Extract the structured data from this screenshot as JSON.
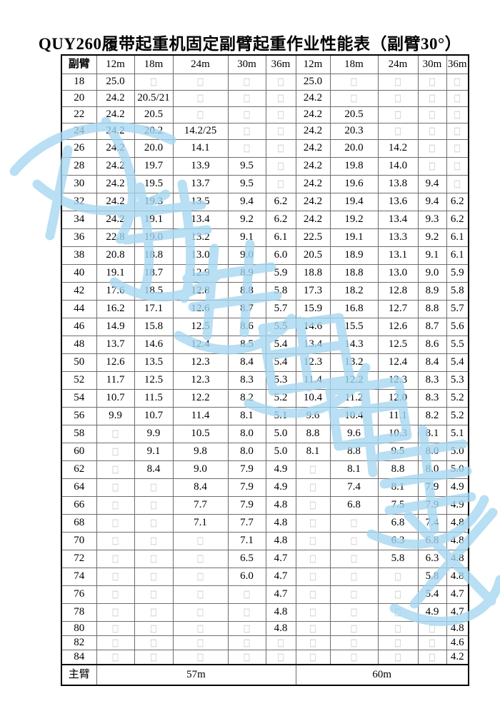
{
  "page": {
    "title": "QUY260履带起重机固定副臂起重作业性能表（副臂30°）"
  },
  "watermark": {
    "color": "#a5d7f0"
  },
  "table": {
    "corner_label": "副臂",
    "main_boom_label": "主臂",
    "left_main_boom": "57m",
    "right_main_boom": "60m",
    "empty_glyph": "□",
    "jib_headers_left": [
      "12m",
      "18m",
      "24m",
      "30m",
      "36m"
    ],
    "jib_headers_right": [
      "12m",
      "18m",
      "24m",
      "30m",
      "36m"
    ],
    "rows": [
      {
        "jib": "18",
        "cells": [
          "25.0",
          "□",
          "□",
          "□",
          "□",
          "25.0",
          "□",
          "□",
          "□",
          "□"
        ]
      },
      {
        "jib": "20",
        "cells": [
          "24.2",
          "20.5/21",
          "□",
          "□",
          "□",
          "24.2",
          "□",
          "□",
          "□",
          "□"
        ]
      },
      {
        "jib": "22",
        "cells": [
          "24.2",
          "20.5",
          "□",
          "□",
          "□",
          "24.2",
          "20.5",
          "□",
          "□",
          "□"
        ]
      },
      {
        "jib": "24",
        "cells": [
          "24.2",
          "20.2",
          "14.2/25",
          "□",
          "□",
          "24.2",
          "20.3",
          "□",
          "□",
          "□"
        ]
      },
      {
        "jib": "26",
        "cells": [
          "24.2",
          "20.0",
          "14.1",
          "□",
          "□",
          "24.2",
          "20.0",
          "14.2",
          "□",
          "□"
        ]
      },
      {
        "jib": "28",
        "cells": [
          "24.2",
          "19.7",
          "13.9",
          "9.5",
          "□",
          "24.2",
          "19.8",
          "14.0",
          "□",
          "□"
        ]
      },
      {
        "jib": "30",
        "cells": [
          "24.2",
          "19.5",
          "13.7",
          "9.5",
          "□",
          "24.2",
          "19.6",
          "13.8",
          "9.4",
          "□"
        ]
      },
      {
        "jib": "32",
        "cells": [
          "24.2",
          "19.3",
          "13.5",
          "9.4",
          "6.2",
          "24.2",
          "19.4",
          "13.6",
          "9.4",
          "6.2"
        ]
      },
      {
        "jib": "34",
        "cells": [
          "24.2",
          "19.1",
          "13.4",
          "9.2",
          "6.2",
          "24.2",
          "19.2",
          "13.4",
          "9.3",
          "6.2"
        ]
      },
      {
        "jib": "36",
        "cells": [
          "22.8",
          "19.0",
          "13.2",
          "9.1",
          "6.1",
          "22.5",
          "19.1",
          "13.3",
          "9.2",
          "6.1"
        ]
      },
      {
        "jib": "38",
        "cells": [
          "20.8",
          "18.8",
          "13.0",
          "9.0",
          "6.0",
          "20.5",
          "18.9",
          "13.1",
          "9.1",
          "6.1"
        ]
      },
      {
        "jib": "40",
        "cells": [
          "19.1",
          "18.7",
          "12.9",
          "8.9",
          "5.9",
          "18.8",
          "18.8",
          "13.0",
          "9.0",
          "5.9"
        ]
      },
      {
        "jib": "42",
        "cells": [
          "17.6",
          "18.5",
          "12.8",
          "8.8",
          "5.8",
          "17.3",
          "18.2",
          "12.8",
          "8.9",
          "5.8"
        ]
      },
      {
        "jib": "44",
        "cells": [
          "16.2",
          "17.1",
          "12.6",
          "8.7",
          "5.7",
          "15.9",
          "16.8",
          "12.7",
          "8.8",
          "5.7"
        ]
      },
      {
        "jib": "46",
        "cells": [
          "14.9",
          "15.8",
          "12.5",
          "8.6",
          "5.5",
          "14.6",
          "15.5",
          "12.6",
          "8.7",
          "5.6"
        ]
      },
      {
        "jib": "48",
        "cells": [
          "13.7",
          "14.6",
          "12.4",
          "8.5",
          "5.4",
          "13.4",
          "14.3",
          "12.5",
          "8.6",
          "5.5"
        ]
      },
      {
        "jib": "50",
        "cells": [
          "12.6",
          "13.5",
          "12.3",
          "8.4",
          "5.4",
          "12.3",
          "13.2",
          "12.4",
          "8.4",
          "5.4"
        ]
      },
      {
        "jib": "52",
        "cells": [
          "11.7",
          "12.5",
          "12.3",
          "8.3",
          "5.3",
          "11.4",
          "12.2",
          "12.3",
          "8.3",
          "5.3"
        ]
      },
      {
        "jib": "54",
        "cells": [
          "10.7",
          "11.5",
          "12.2",
          "8.2",
          "5.2",
          "10.4",
          "11.2",
          "12.0",
          "8.3",
          "5.2"
        ]
      },
      {
        "jib": "56",
        "cells": [
          "9.9",
          "10.7",
          "11.4",
          "8.1",
          "5.1",
          "9.6",
          "10.4",
          "11.1",
          "8.2",
          "5.2"
        ]
      },
      {
        "jib": "58",
        "cells": [
          "□",
          "9.9",
          "10.5",
          "8.0",
          "5.0",
          "8.8",
          "9.6",
          "10.3",
          "8.1",
          "5.1"
        ]
      },
      {
        "jib": "60",
        "cells": [
          "□",
          "9.1",
          "9.8",
          "8.0",
          "5.0",
          "8.1",
          "8.8",
          "9.5",
          "8.0",
          "5.0"
        ]
      },
      {
        "jib": "62",
        "cells": [
          "□",
          "8.4",
          "9.0",
          "7.9",
          "4.9",
          "□",
          "8.1",
          "8.8",
          "8.0",
          "5.0"
        ]
      },
      {
        "jib": "64",
        "cells": [
          "□",
          "□",
          "8.4",
          "7.9",
          "4.9",
          "□",
          "7.4",
          "8.1",
          "7.9",
          "4.9"
        ]
      },
      {
        "jib": "66",
        "cells": [
          "□",
          "□",
          "7.7",
          "7.9",
          "4.8",
          "□",
          "6.8",
          "7.5",
          "7.9",
          "4.9"
        ]
      },
      {
        "jib": "68",
        "cells": [
          "□",
          "□",
          "7.1",
          "7.7",
          "4.8",
          "□",
          "□",
          "6.8",
          "7.4",
          "4.8"
        ]
      },
      {
        "jib": "70",
        "cells": [
          "□",
          "□",
          "□",
          "7.1",
          "4.8",
          "□",
          "□",
          "6.3",
          "6.8",
          "4.8"
        ]
      },
      {
        "jib": "72",
        "cells": [
          "□",
          "□",
          "□",
          "6.5",
          "4.7",
          "□",
          "□",
          "5.8",
          "6.3",
          "4.8"
        ]
      },
      {
        "jib": "74",
        "cells": [
          "□",
          "□",
          "□",
          "6.0",
          "4.7",
          "□",
          "□",
          "□",
          "5.8",
          "4.8"
        ]
      },
      {
        "jib": "76",
        "cells": [
          "□",
          "□",
          "□",
          "□",
          "4.7",
          "□",
          "□",
          "□",
          "5.4",
          "4.7"
        ]
      },
      {
        "jib": "78",
        "cells": [
          "□",
          "□",
          "□",
          "□",
          "4.8",
          "□",
          "□",
          "□",
          "4.9",
          "4.7"
        ]
      },
      {
        "jib": "80",
        "cells": [
          "□",
          "□",
          "□",
          "□",
          "4.8",
          "□",
          "□",
          "□",
          "□",
          "4.8"
        ]
      },
      {
        "jib": "82",
        "cells": [
          "□",
          "□",
          "□",
          "□",
          "□",
          "□",
          "□",
          "□",
          "□",
          "4.6"
        ]
      },
      {
        "jib": "84",
        "cells": [
          "□",
          "□",
          "□",
          "□",
          "□",
          "□",
          "□",
          "□",
          "□",
          "4.2"
        ]
      }
    ]
  }
}
